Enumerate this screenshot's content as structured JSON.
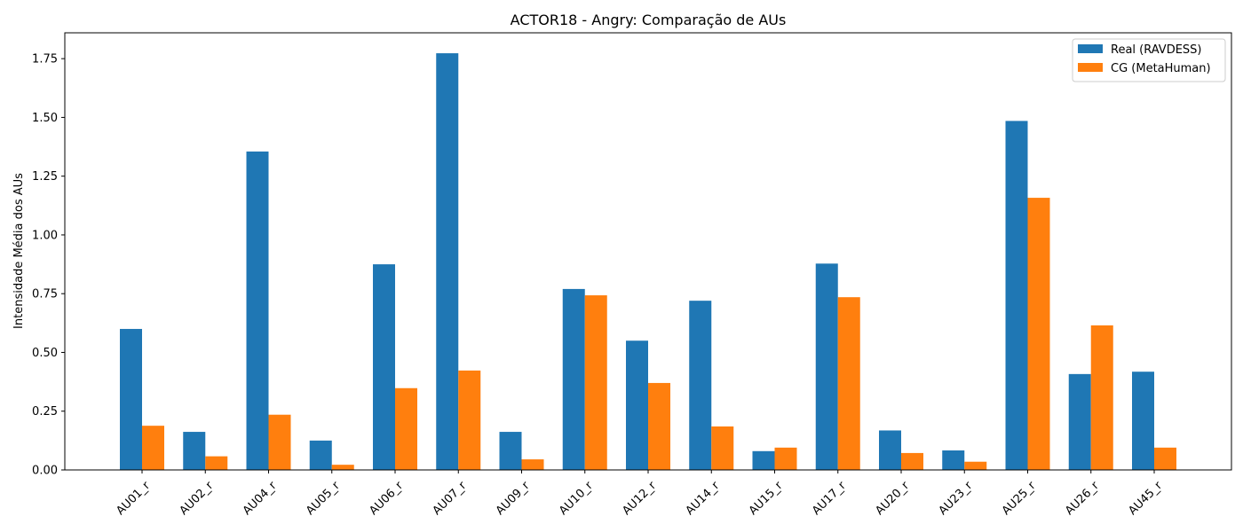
{
  "chart_data": {
    "type": "bar",
    "title": "ACTOR18 - Angry: Comparação de AUs",
    "xlabel": "",
    "ylabel": "Intensidade Média dos AUs",
    "ylim": [
      0,
      1.86
    ],
    "yticks": [
      "0.00",
      "0.25",
      "0.50",
      "0.75",
      "1.00",
      "1.25",
      "1.50",
      "1.75"
    ],
    "categories": [
      "AU01_r",
      "AU02_r",
      "AU04_r",
      "AU05_r",
      "AU06_r",
      "AU07_r",
      "AU09_r",
      "AU10_r",
      "AU12_r",
      "AU14_r",
      "AU15_r",
      "AU17_r",
      "AU20_r",
      "AU23_r",
      "AU25_r",
      "AU26_r",
      "AU45_r"
    ],
    "series": [
      {
        "name": "Real (RAVDESS)",
        "color": "#1f77b4",
        "values": [
          0.6,
          0.162,
          1.355,
          0.125,
          0.875,
          1.773,
          0.162,
          0.77,
          0.55,
          0.72,
          0.08,
          0.878,
          0.168,
          0.083,
          1.485,
          0.408,
          0.418
        ]
      },
      {
        "name": "CG (MetaHuman)",
        "color": "#ff7f0e",
        "values": [
          0.188,
          0.058,
          0.235,
          0.022,
          0.348,
          0.423,
          0.045,
          0.743,
          0.37,
          0.185,
          0.095,
          0.735,
          0.072,
          0.035,
          1.158,
          0.615,
          0.095
        ]
      }
    ],
    "legend_position": "top-right",
    "grid": false
  }
}
